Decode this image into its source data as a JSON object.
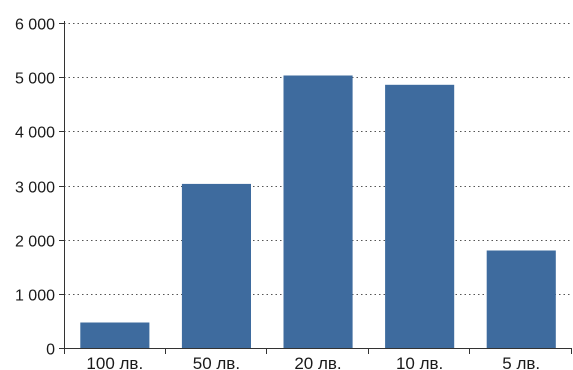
{
  "chart_data": {
    "type": "bar",
    "categories": [
      "100 лв.",
      "50 лв.",
      "20 лв.",
      "10 лв.",
      "5 лв."
    ],
    "values": [
      470,
      3030,
      5030,
      4860,
      1800
    ],
    "ylim": [
      0,
      6000
    ],
    "yticks": [
      0,
      1000,
      2000,
      3000,
      4000,
      5000,
      6000
    ],
    "ytick_labels": [
      "0",
      "1 000",
      "2 000",
      "3 000",
      "4 000",
      "5 000",
      "6 000"
    ],
    "grid": true,
    "colors": {
      "bar": "#3e6b9e"
    }
  }
}
